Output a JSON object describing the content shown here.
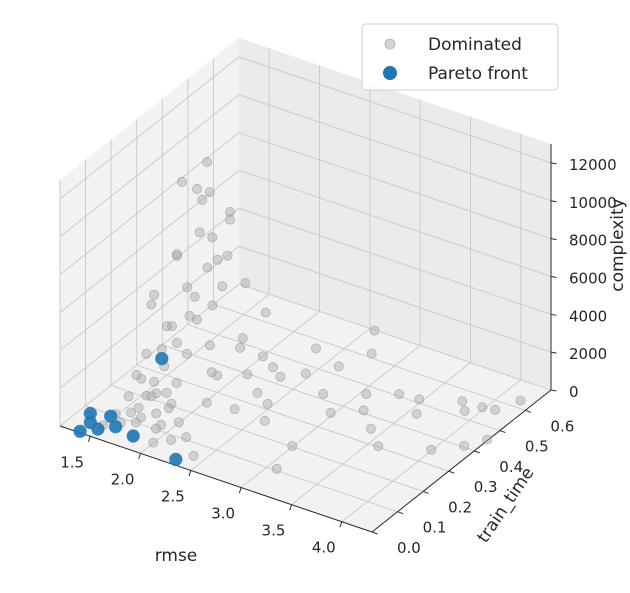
{
  "chart_data": {
    "type": "scatter",
    "projection": "3d",
    "title": "",
    "xlabel": "rmse",
    "ylabel": "train_time",
    "zlabel": "complexity",
    "xlim": [
      1.2,
      4.3
    ],
    "ylim": [
      0.0,
      0.7
    ],
    "zlim": [
      0,
      13000
    ],
    "xticks": [
      "1.5",
      "2.0",
      "2.5",
      "3.0",
      "3.5",
      "4.0"
    ],
    "yticks": [
      "0.0",
      "0.1",
      "0.2",
      "0.3",
      "0.4",
      "0.5",
      "0.6"
    ],
    "zticks": [
      "0",
      "2000",
      "4000",
      "6000",
      "8000",
      "10000",
      "12000"
    ],
    "grid": true,
    "legend_position": "top-right",
    "series": [
      {
        "name": "Dominated",
        "color": "#a9a9a9",
        "points": [
          [
            1.9,
            0.3,
            12000
          ],
          [
            1.9,
            0.31,
            10300
          ],
          [
            2.0,
            0.35,
            9000
          ],
          [
            1.8,
            0.32,
            9600
          ],
          [
            2.0,
            0.35,
            8600
          ],
          [
            1.7,
            0.28,
            10800
          ],
          [
            1.8,
            0.3,
            10400
          ],
          [
            1.6,
            0.3,
            6500
          ],
          [
            1.7,
            0.26,
            7200
          ],
          [
            1.8,
            0.31,
            8000
          ],
          [
            1.9,
            0.32,
            7800
          ],
          [
            2.0,
            0.34,
            6800
          ],
          [
            1.8,
            0.38,
            5800
          ],
          [
            1.7,
            0.38,
            5200
          ],
          [
            1.6,
            0.2,
            5000
          ],
          [
            1.5,
            0.25,
            4800
          ],
          [
            1.6,
            0.34,
            4400
          ],
          [
            1.7,
            0.33,
            4200
          ],
          [
            2.0,
            0.32,
            5400
          ],
          [
            1.9,
            0.26,
            4100
          ],
          [
            1.8,
            0.36,
            3600
          ],
          [
            1.7,
            0.31,
            3400
          ],
          [
            1.6,
            0.28,
            3000
          ],
          [
            1.5,
            0.3,
            2600
          ],
          [
            1.5,
            0.22,
            2000
          ],
          [
            1.6,
            0.3,
            1900
          ],
          [
            1.5,
            0.28,
            1600
          ],
          [
            1.7,
            0.3,
            1500
          ],
          [
            1.8,
            0.35,
            1600
          ],
          [
            1.6,
            0.25,
            1200
          ],
          [
            1.5,
            0.2,
            900
          ],
          [
            1.4,
            0.22,
            700
          ],
          [
            1.5,
            0.15,
            500
          ],
          [
            1.6,
            0.18,
            400
          ],
          [
            1.7,
            0.22,
            300
          ],
          [
            1.5,
            0.25,
            200
          ],
          [
            1.6,
            0.2,
            150
          ],
          [
            1.5,
            0.1,
            100
          ],
          [
            1.6,
            0.15,
            80
          ],
          [
            1.7,
            0.12,
            60
          ],
          [
            1.8,
            0.2,
            120
          ],
          [
            1.9,
            0.1,
            50
          ],
          [
            2.0,
            0.15,
            40
          ],
          [
            1.6,
            0.08,
            30
          ],
          [
            1.5,
            0.05,
            40
          ],
          [
            1.7,
            0.18,
            700
          ],
          [
            1.8,
            0.22,
            1000
          ],
          [
            2.0,
            0.3,
            900
          ],
          [
            1.9,
            0.15,
            600
          ],
          [
            2.1,
            0.22,
            500
          ],
          [
            2.2,
            0.2,
            2500
          ],
          [
            2.1,
            0.35,
            2000
          ],
          [
            2.3,
            0.3,
            1500
          ],
          [
            2.5,
            0.35,
            1200
          ],
          [
            2.4,
            0.3,
            700
          ],
          [
            2.6,
            0.45,
            1800
          ],
          [
            2.8,
            0.6,
            1500
          ],
          [
            2.7,
            0.5,
            500
          ],
          [
            2.9,
            0.55,
            1000
          ],
          [
            2.3,
            0.25,
            200
          ],
          [
            2.5,
            0.3,
            300
          ],
          [
            2.2,
            0.1,
            150
          ],
          [
            2.6,
            0.25,
            120
          ],
          [
            2.8,
            0.4,
            300
          ],
          [
            3.0,
            0.35,
            200
          ],
          [
            3.1,
            0.45,
            300
          ],
          [
            3.2,
            0.4,
            150
          ],
          [
            3.3,
            0.5,
            120
          ],
          [
            3.5,
            0.5,
            200
          ],
          [
            3.6,
            0.45,
            150
          ],
          [
            3.8,
            0.55,
            120
          ],
          [
            3.9,
            0.52,
            100
          ],
          [
            4.0,
            0.55,
            150
          ],
          [
            4.1,
            0.56,
            100
          ],
          [
            4.2,
            0.62,
            120
          ],
          [
            3.4,
            0.35,
            80
          ],
          [
            3.6,
            0.3,
            60
          ],
          [
            3.0,
            0.2,
            50
          ],
          [
            3.1,
            0.1,
            100
          ],
          [
            4.0,
            0.35,
            50
          ],
          [
            4.2,
            0.4,
            80
          ],
          [
            4.3,
            0.45,
            60
          ],
          [
            2.4,
            0.05,
            50
          ],
          [
            2.0,
            0.05,
            30
          ],
          [
            1.8,
            0.05,
            20
          ],
          [
            1.7,
            0.1,
            20
          ],
          [
            1.9,
            0.12,
            40
          ],
          [
            2.1,
            0.08,
            30
          ],
          [
            1.6,
            0.12,
            150
          ],
          [
            1.8,
            0.14,
            250
          ],
          [
            2.3,
            0.4,
            800
          ],
          [
            2.5,
            0.45,
            300
          ],
          [
            2.2,
            0.4,
            1200
          ],
          [
            2.0,
            0.4,
            1800
          ],
          [
            1.9,
            0.45,
            4000
          ],
          [
            2.1,
            0.45,
            2800
          ]
        ]
      },
      {
        "name": "Pareto front",
        "color": "#1f77b4",
        "points": [
          [
            1.4,
            0.0,
            80
          ],
          [
            1.4,
            0.04,
            120
          ],
          [
            1.5,
            0.03,
            60
          ],
          [
            1.6,
            0.06,
            40
          ],
          [
            1.5,
            0.08,
            200
          ],
          [
            1.45,
            0.02,
            900
          ],
          [
            1.5,
            0.28,
            1100
          ],
          [
            1.8,
            0.05,
            20
          ],
          [
            2.3,
            0.02,
            10
          ]
        ]
      }
    ]
  }
}
